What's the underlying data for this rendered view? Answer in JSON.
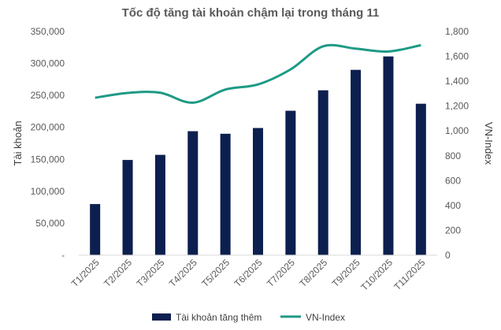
{
  "chart_data": {
    "type": "bar",
    "title": "Tốc độ tăng tài khoản chậm lại trong tháng 11",
    "categories": [
      "T1/2025",
      "T2/2025",
      "T3/2025",
      "T4/2025",
      "T5/2025",
      "T6/2025",
      "T7/2025",
      "T8/2025",
      "T9/2025",
      "T10/2025",
      "T11/2025"
    ],
    "series": [
      {
        "name": "Tài khoản tăng thêm",
        "type": "bar",
        "axis": "left",
        "color": "#0d1f4f",
        "values": [
          80000,
          149000,
          157000,
          194000,
          190000,
          199000,
          226000,
          258000,
          290000,
          311000,
          237000
        ]
      },
      {
        "name": "VN-Index",
        "type": "line",
        "axis": "right",
        "color": "#1e9a86",
        "values": [
          1267,
          1306,
          1307,
          1227,
          1333,
          1374,
          1495,
          1681,
          1662,
          1639,
          1690
        ]
      }
    ],
    "ylabel": "Tài khoản",
    "y2label": "VN-Index",
    "ylim": [
      0,
      350000
    ],
    "y2lim": [
      0,
      1800
    ],
    "yticks": [
      "-",
      "50,000",
      "100,000",
      "150,000",
      "200,000",
      "250,000",
      "300,000",
      "350,000"
    ],
    "y2ticks": [
      "0",
      "200",
      "400",
      "600",
      "800",
      "1,000",
      "1,200",
      "1,400",
      "1,600",
      "1,800"
    ],
    "grid": false,
    "legend": "bottom"
  }
}
